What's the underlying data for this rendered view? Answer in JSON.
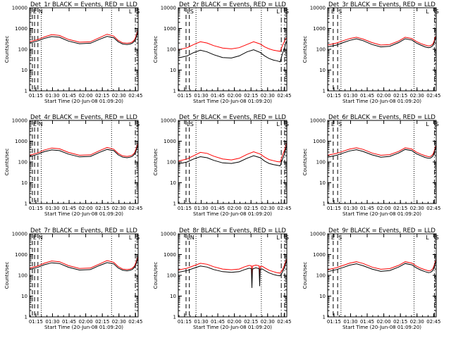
{
  "chart_data": {
    "type": "line",
    "layout": "3x3 grid",
    "xlabel": "Start Time (20-Jun-08 01:09:20)",
    "ylabel": "Counts/sec",
    "y_scale": "log",
    "ylim": [
      1,
      10000
    ],
    "y_ticks": [
      "1",
      "10",
      "100",
      "1000",
      "10000"
    ],
    "x_range_minutes_after_start": [
      0,
      98
    ],
    "x_ticks": [
      {
        "label": "01:15",
        "min": 5.67
      },
      {
        "label": "01:30",
        "min": 20.67
      },
      {
        "label": "01:45",
        "min": 35.67
      },
      {
        "label": "02:00",
        "min": 50.67
      },
      {
        "label": "02:15",
        "min": 65.67
      },
      {
        "label": "02:30",
        "min": 80.67
      },
      {
        "label": "02:45",
        "min": 95.67
      }
    ],
    "series_colors": {
      "events": "#000000",
      "lld": "#ff0000"
    },
    "panels": [
      {
        "title": "Det_1r BLACK = Events, RED = LLD",
        "events_x": [
          0,
          8,
          13,
          20,
          27,
          35,
          45,
          55,
          63,
          70,
          76,
          80,
          84,
          88,
          91,
          93,
          95,
          96,
          97,
          98
        ],
        "events_y": [
          200,
          260,
          330,
          410,
          380,
          250,
          185,
          195,
          300,
          420,
          360,
          230,
          180,
          170,
          180,
          200,
          260,
          350,
          500,
          650
        ],
        "lld_x": [
          0,
          8,
          13,
          20,
          27,
          35,
          45,
          55,
          63,
          70,
          76,
          80,
          84,
          88,
          91,
          93,
          95,
          96,
          97,
          98
        ],
        "lld_y": [
          230,
          300,
          390,
          510,
          460,
          300,
          220,
          230,
          360,
          530,
          430,
          270,
          205,
          195,
          205,
          230,
          300,
          420,
          620,
          800
        ],
        "dashed_x": [
          2.5,
          4.5,
          7.5
        ],
        "dotted_x": [
          10.5,
          74
        ],
        "dashdot_x": [
          95.5
        ],
        "letters": [
          {
            "t": "L",
            "min": 2.5
          },
          {
            "t": "N",
            "min": 7.5
          },
          {
            "t": "L",
            "min": 89
          },
          {
            "t": "S",
            "min": 95.5
          }
        ]
      },
      {
        "title": "Det_2r BLACK = Events, RED = LLD",
        "events_x": [
          0,
          8,
          14,
          20,
          26,
          32,
          40,
          48,
          55,
          62,
          68,
          74,
          78,
          82,
          86,
          89,
          92,
          94,
          96,
          97,
          98
        ],
        "events_y": [
          38,
          48,
          70,
          90,
          75,
          55,
          40,
          38,
          48,
          75,
          95,
          70,
          48,
          36,
          30,
          28,
          25,
          60,
          120,
          200,
          260
        ],
        "lld_x": [
          0,
          8,
          14,
          20,
          26,
          32,
          40,
          48,
          55,
          62,
          68,
          74,
          78,
          82,
          86,
          89,
          92,
          94,
          96,
          97,
          98
        ],
        "lld_y": [
          95,
          120,
          170,
          230,
          200,
          150,
          115,
          105,
          120,
          170,
          230,
          180,
          130,
          105,
          90,
          85,
          80,
          150,
          250,
          330,
          350
        ],
        "dashed_x": [
          7,
          10
        ],
        "dotted_x": [
          16,
          75
        ],
        "dashdot_x": [
          93,
          96
        ],
        "letters": [
          {
            "t": "L",
            "min": 7
          },
          {
            "t": "S",
            "min": 10
          },
          {
            "t": "L",
            "min": 88
          },
          {
            "t": "S",
            "min": 96
          }
        ]
      },
      {
        "title": "Det_3r BLACK = Events, RED = LLD",
        "events_x": [
          0,
          8,
          14,
          20,
          26,
          32,
          40,
          48,
          56,
          64,
          70,
          76,
          80,
          84,
          88,
          91,
          93,
          95,
          96,
          97,
          98
        ],
        "events_y": [
          130,
          160,
          210,
          270,
          320,
          260,
          170,
          130,
          140,
          210,
          320,
          280,
          200,
          160,
          130,
          120,
          125,
          150,
          200,
          300,
          380
        ],
        "lld_x": [
          0,
          8,
          14,
          20,
          26,
          32,
          40,
          48,
          56,
          64,
          70,
          76,
          80,
          84,
          88,
          91,
          93,
          95,
          96,
          97,
          98
        ],
        "lld_y": [
          160,
          200,
          260,
          330,
          380,
          310,
          210,
          160,
          170,
          250,
          380,
          330,
          240,
          190,
          160,
          145,
          150,
          180,
          240,
          360,
          440
        ],
        "dashed_x": [
          5,
          9
        ],
        "dotted_x": [
          12,
          78
        ],
        "dashdot_x": [
          96.5
        ],
        "letters": [
          {
            "t": "L",
            "min": 2.5
          },
          {
            "t": "S",
            "min": 9
          },
          {
            "t": "L",
            "min": 88
          },
          {
            "t": "S",
            "min": 96.5
          }
        ]
      },
      {
        "title": "Det_4r BLACK = Events, RED = LLD",
        "events_x": [
          0,
          8,
          13,
          20,
          27,
          35,
          45,
          55,
          63,
          70,
          76,
          80,
          84,
          88,
          91,
          93,
          95,
          96,
          97,
          98
        ],
        "events_y": [
          180,
          240,
          310,
          380,
          350,
          240,
          175,
          185,
          290,
          400,
          350,
          220,
          170,
          160,
          170,
          190,
          250,
          340,
          480,
          620
        ],
        "lld_x": [
          0,
          8,
          13,
          20,
          27,
          35,
          45,
          55,
          63,
          70,
          76,
          80,
          84,
          88,
          91,
          93,
          95,
          96,
          97,
          98
        ],
        "lld_y": [
          210,
          280,
          370,
          470,
          430,
          290,
          210,
          220,
          345,
          500,
          410,
          260,
          195,
          185,
          195,
          220,
          290,
          400,
          600,
          780
        ],
        "dashed_x": [
          2.5,
          4.5,
          7.5
        ],
        "dotted_x": [
          10.5,
          74
        ],
        "dashdot_x": [
          95.5
        ],
        "letters": [
          {
            "t": "L",
            "min": 2.5
          },
          {
            "t": "N",
            "min": 7.5
          },
          {
            "t": "L",
            "min": 89
          },
          {
            "t": "S",
            "min": 95.5
          }
        ]
      },
      {
        "title": "Det_5r BLACK = Events, RED = LLD",
        "events_x": [
          0,
          8,
          14,
          20,
          26,
          32,
          40,
          48,
          55,
          62,
          68,
          74,
          78,
          82,
          86,
          89,
          92,
          94,
          96,
          97,
          98
        ],
        "events_y": [
          80,
          100,
          140,
          180,
          160,
          120,
          90,
          85,
          100,
          150,
          200,
          160,
          110,
          85,
          75,
          70,
          65,
          130,
          260,
          420,
          600
        ],
        "lld_x": [
          0,
          8,
          14,
          20,
          26,
          32,
          40,
          48,
          55,
          62,
          68,
          74,
          78,
          82,
          86,
          89,
          92,
          94,
          96,
          97,
          98
        ],
        "lld_y": [
          110,
          140,
          200,
          290,
          260,
          190,
          140,
          125,
          150,
          230,
          310,
          240,
          170,
          130,
          115,
          105,
          100,
          200,
          380,
          600,
          850
        ],
        "dashed_x": [
          7,
          10
        ],
        "dotted_x": [
          16,
          75
        ],
        "dashdot_x": [
          93,
          96
        ],
        "letters": [
          {
            "t": "L",
            "min": 7
          },
          {
            "t": "S",
            "min": 10
          },
          {
            "t": "L",
            "min": 88
          },
          {
            "t": "S",
            "min": 96
          }
        ]
      },
      {
        "title": "Det_6r BLACK = Events, RED = LLD",
        "events_x": [
          0,
          8,
          14,
          20,
          26,
          32,
          40,
          48,
          56,
          64,
          70,
          76,
          80,
          84,
          88,
          91,
          93,
          95,
          96,
          97,
          98
        ],
        "events_y": [
          170,
          210,
          270,
          340,
          390,
          320,
          220,
          170,
          185,
          270,
          400,
          350,
          250,
          200,
          165,
          150,
          155,
          190,
          260,
          400,
          520
        ],
        "lld_x": [
          0,
          8,
          14,
          20,
          26,
          32,
          40,
          48,
          56,
          64,
          70,
          76,
          80,
          84,
          88,
          91,
          93,
          95,
          96,
          97,
          98
        ],
        "lld_y": [
          210,
          260,
          330,
          420,
          480,
          400,
          270,
          210,
          225,
          320,
          480,
          420,
          300,
          240,
          200,
          180,
          185,
          230,
          310,
          480,
          620
        ],
        "dashed_x": [
          5,
          9
        ],
        "dotted_x": [
          12,
          78
        ],
        "dashdot_x": [
          96.5
        ],
        "letters": [
          {
            "t": "L",
            "min": 2.5
          },
          {
            "t": "S",
            "min": 9
          },
          {
            "t": "L",
            "min": 88
          },
          {
            "t": "S",
            "min": 96.5
          }
        ]
      },
      {
        "title": "Det_7r BLACK = Events, RED = LLD",
        "events_x": [
          0,
          8,
          13,
          20,
          27,
          35,
          45,
          55,
          63,
          70,
          76,
          80,
          84,
          88,
          91,
          93,
          95,
          96,
          97,
          98
        ],
        "events_y": [
          190,
          250,
          320,
          400,
          370,
          245,
          180,
          190,
          295,
          410,
          355,
          225,
          175,
          165,
          175,
          195,
          255,
          345,
          490,
          640
        ],
        "lld_x": [
          0,
          8,
          13,
          20,
          27,
          35,
          45,
          55,
          63,
          70,
          76,
          80,
          84,
          88,
          91,
          93,
          95,
          96,
          97,
          98
        ],
        "lld_y": [
          220,
          290,
          380,
          490,
          450,
          295,
          215,
          225,
          350,
          515,
          420,
          265,
          200,
          190,
          200,
          225,
          295,
          410,
          610,
          790
        ],
        "dashed_x": [
          2.5,
          4.5,
          7.5
        ],
        "dotted_x": [
          10.5,
          74
        ],
        "dashdot_x": [
          95.5
        ],
        "letters": [
          {
            "t": "L",
            "min": 2.5
          },
          {
            "t": "N",
            "min": 7.5
          },
          {
            "t": "L",
            "min": 89
          },
          {
            "t": "S",
            "min": 95.5
          }
        ]
      },
      {
        "title": "Det_8r BLACK = Events, RED = LLD",
        "events_x": [
          0,
          8,
          14,
          20,
          26,
          32,
          40,
          48,
          55,
          60,
          64,
          66,
          66.5,
          67,
          70,
          73,
          73.5,
          74,
          76,
          79,
          82,
          86,
          89,
          92,
          94,
          96,
          97,
          98
        ],
        "events_y": [
          140,
          170,
          220,
          280,
          250,
          190,
          150,
          140,
          150,
          190,
          220,
          210,
          25,
          200,
          230,
          210,
          30,
          200,
          200,
          160,
          130,
          110,
          100,
          95,
          140,
          250,
          380,
          500
        ],
        "lld_x": [
          0,
          8,
          14,
          20,
          26,
          32,
          40,
          48,
          55,
          60,
          64,
          66,
          66.5,
          67,
          70,
          73,
          73.5,
          74,
          76,
          79,
          82,
          86,
          89,
          92,
          94,
          96,
          97,
          98
        ],
        "lld_y": [
          180,
          220,
          290,
          380,
          340,
          260,
          200,
          185,
          200,
          260,
          300,
          290,
          70,
          280,
          310,
          290,
          75,
          270,
          270,
          215,
          175,
          150,
          135,
          128,
          180,
          320,
          480,
          620
        ],
        "dashed_x": [
          7,
          10
        ],
        "dotted_x": [
          16,
          75
        ],
        "dashdot_x": [
          93,
          96
        ],
        "letters": [
          {
            "t": "L",
            "min": 7
          },
          {
            "t": "N",
            "min": 10
          },
          {
            "t": "L",
            "min": 88
          },
          {
            "t": "S",
            "min": 96
          }
        ]
      },
      {
        "title": "Det_9r BLACK = Events, RED = LLD",
        "events_x": [
          0,
          8,
          14,
          20,
          26,
          32,
          40,
          48,
          56,
          64,
          70,
          76,
          80,
          84,
          88,
          91,
          93,
          95,
          96,
          97,
          98
        ],
        "events_y": [
          150,
          190,
          240,
          310,
          360,
          290,
          200,
          155,
          170,
          250,
          370,
          320,
          230,
          180,
          150,
          135,
          140,
          170,
          230,
          360,
          470
        ],
        "lld_x": [
          0,
          8,
          14,
          20,
          26,
          32,
          40,
          48,
          56,
          64,
          70,
          76,
          80,
          84,
          88,
          91,
          93,
          95,
          96,
          97,
          98
        ],
        "lld_y": [
          185,
          235,
          300,
          390,
          450,
          370,
          250,
          195,
          210,
          300,
          450,
          390,
          280,
          220,
          185,
          165,
          170,
          210,
          290,
          440,
          570
        ],
        "dashed_x": [
          5,
          9
        ],
        "dotted_x": [
          12,
          78
        ],
        "dashdot_x": [
          96.5
        ],
        "letters": [
          {
            "t": "L",
            "min": 2.5
          },
          {
            "t": "S",
            "min": 9
          },
          {
            "t": "L",
            "min": 88
          },
          {
            "t": "S",
            "min": 96.5
          }
        ]
      }
    ]
  }
}
